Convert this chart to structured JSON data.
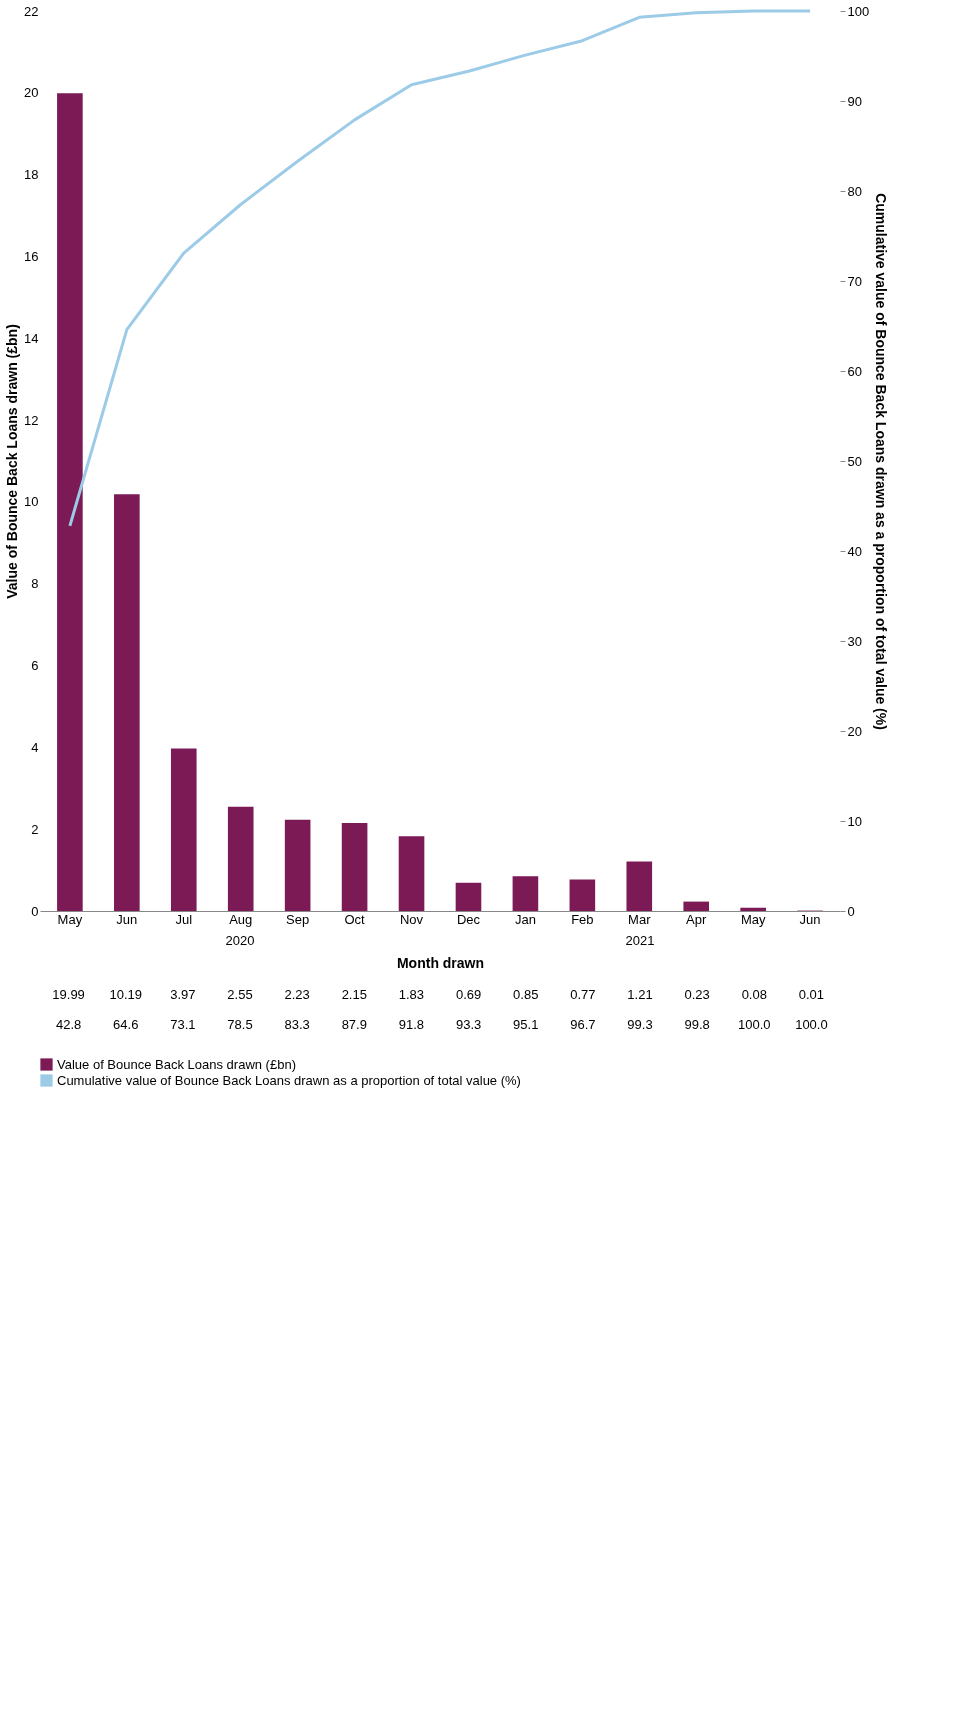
{
  "chart_data": {
    "type": "bar",
    "categories": [
      "May",
      "Jun",
      "Jul",
      "Aug",
      "Sep",
      "Oct",
      "Nov",
      "Dec",
      "Jan",
      "Feb",
      "Mar",
      "Apr",
      "May",
      "Jun"
    ],
    "xlabel": "Month drawn",
    "ylabel": "Value of Bounce Back Loans drawn (£bn)",
    "y2label": "Cumulative value of Bounce Back Loans drawn as a proportion of total value (%)",
    "series": [
      {
        "name": "Value of Bounce Back Loans drawn (£bn)",
        "color": "#7b1a55",
        "values": [
          19.99,
          10.19,
          3.97,
          2.55,
          2.23,
          2.15,
          1.83,
          0.69,
          0.85,
          0.77,
          1.21,
          0.23,
          0.08,
          0.01
        ],
        "value_labels": [
          "19.99",
          "10.19",
          "3.97",
          "2.55",
          "2.23",
          "2.15",
          "1.83",
          "0.69",
          "0.85",
          "0.77",
          "1.21",
          "0.23",
          "0.08",
          "0.01"
        ]
      },
      {
        "name": "Cumulative value of Bounce Back Loans drawn as a proportion of total value (%)",
        "type": "line",
        "axis": "y2",
        "color": "#9ccbe8",
        "values": [
          42.8,
          64.6,
          73.1,
          78.5,
          83.3,
          87.9,
          91.8,
          93.3,
          95.1,
          96.7,
          99.3,
          99.8,
          100.0,
          100.0
        ],
        "value_labels": [
          "42.8",
          "64.6",
          "73.1",
          "78.5",
          "83.3",
          "87.9",
          "91.8",
          "93.3",
          "95.1",
          "96.7",
          "99.3",
          "99.8",
          "100.0",
          "100.0"
        ]
      }
    ],
    "ylim": [
      0,
      22
    ],
    "yticks": [
      0,
      2,
      4,
      6,
      8,
      10,
      12,
      14,
      16,
      18,
      20,
      22
    ],
    "y2lim": [
      0,
      100
    ],
    "y2ticks": [
      0,
      10,
      20,
      30,
      40,
      50,
      60,
      70,
      80,
      90,
      100
    ],
    "annotations": [
      "2020",
      "2021"
    ],
    "grid": false,
    "legend": "bottom",
    "line_style": "solid",
    "marker": "none"
  }
}
